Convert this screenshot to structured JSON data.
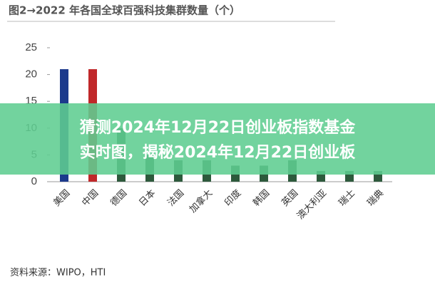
{
  "chart_data": {
    "type": "bar",
    "title": "图2→2022 年各国全球百强科技集群数量（个）",
    "categories": [
      "美国",
      "中国",
      "德国",
      "日本",
      "法国",
      "加拿大",
      "印度",
      "韩国",
      "英国",
      "澳大利亚",
      "瑞士",
      "瑞典"
    ],
    "values": [
      21,
      21,
      10,
      5,
      4,
      4,
      3,
      3,
      4,
      2,
      2,
      2
    ],
    "colors": [
      "#1c3a8c",
      "#c0282a",
      "#2d5a3c",
      "#2d5a3c",
      "#2d5a3c",
      "#2d5a3c",
      "#2d5a3c",
      "#2d5a3c",
      "#2d5a3c",
      "#2d5a3c",
      "#2d5a3c",
      "#2d5a3c"
    ],
    "ylim": [
      0,
      25
    ],
    "yticks": [
      0,
      5,
      10,
      15,
      20,
      25
    ],
    "grid": false,
    "source": "资料来源：WIPO，HTI"
  },
  "overlay": {
    "lines": [
      "猜测2024年12月22日创业板指数基金",
      "实时图，揭秘2024年12月22日创业板"
    ]
  }
}
